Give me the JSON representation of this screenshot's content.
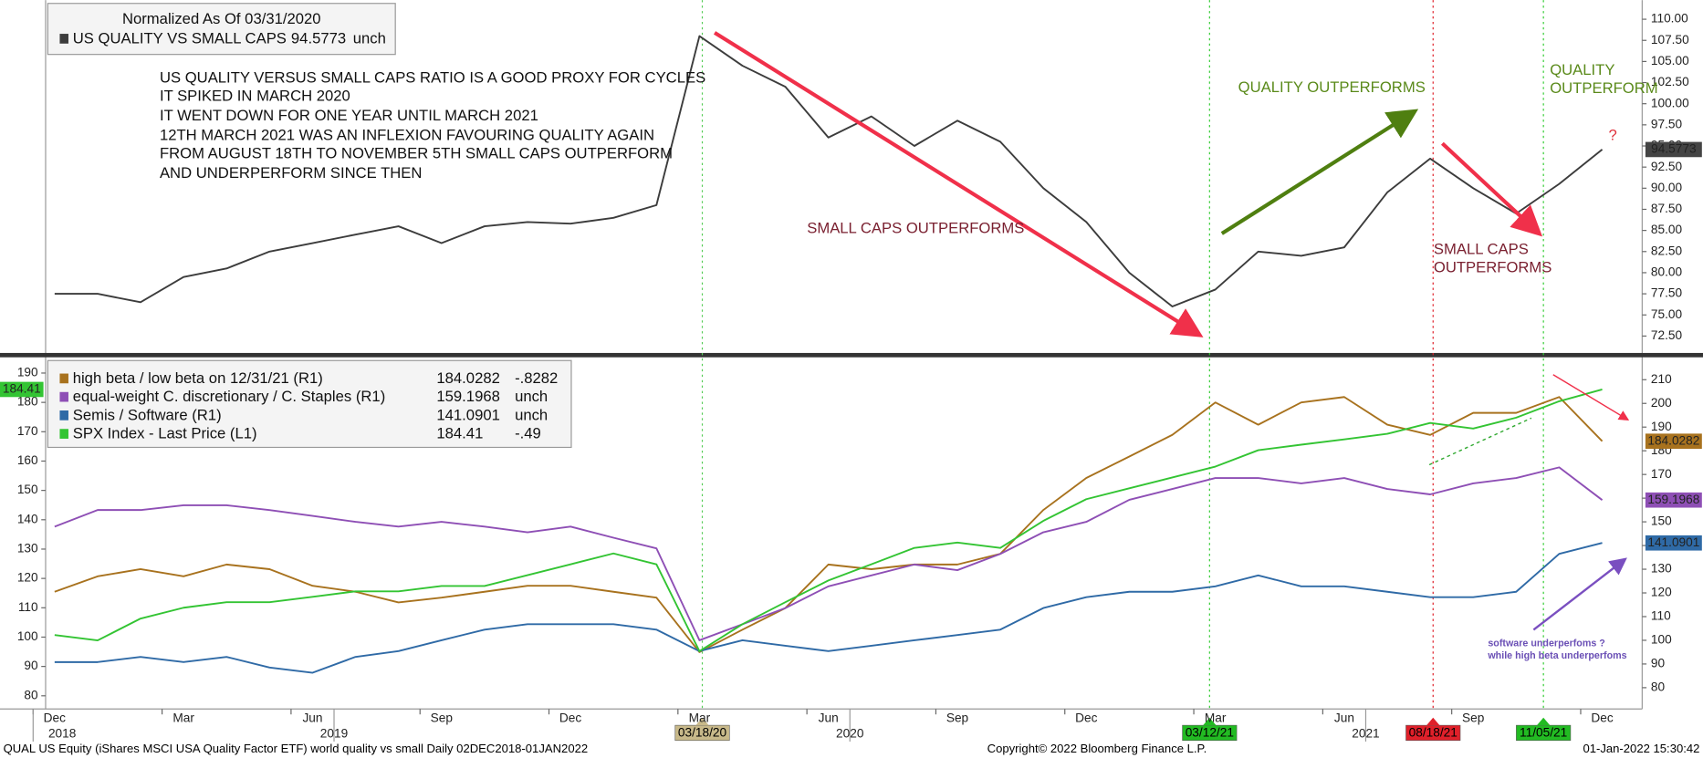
{
  "chart_data": [
    {
      "type": "line",
      "title": "Normalized As Of 03/31/2020",
      "x": [
        "2018-12",
        "2019-01",
        "2019-02",
        "2019-03",
        "2019-04",
        "2019-05",
        "2019-06",
        "2019-07",
        "2019-08",
        "2019-09",
        "2019-10",
        "2019-11",
        "2019-12",
        "2020-01",
        "2020-02",
        "2020-03",
        "2020-04",
        "2020-05",
        "2020-06",
        "2020-07",
        "2020-08",
        "2020-09",
        "2020-10",
        "2020-11",
        "2020-12",
        "2021-01",
        "2021-02",
        "2021-03",
        "2021-04",
        "2021-05",
        "2021-06",
        "2021-07",
        "2021-08",
        "2021-09",
        "2021-10",
        "2021-11",
        "2021-12"
      ],
      "series": [
        {
          "name": "US QUALITY VS SMALL CAPS",
          "color": "#3c3c3c",
          "last_label": "94.5773",
          "change_label": "unch",
          "values": [
            77.5,
            77.5,
            76.5,
            79.5,
            80.5,
            82.5,
            83.5,
            84.5,
            85.5,
            83.5,
            85.5,
            86.0,
            85.8,
            86.5,
            88.0,
            108.0,
            104.5,
            102.0,
            96.0,
            98.5,
            95.0,
            98.0,
            95.5,
            90.0,
            86.0,
            80.0,
            76.0,
            78.0,
            82.5,
            82.0,
            83.0,
            89.5,
            93.5,
            90.0,
            87.0,
            90.5,
            94.5773
          ]
        }
      ],
      "ylim": [
        70.5,
        112
      ],
      "yticks": [
        {
          "value": 72.5,
          "label": "72.50"
        },
        {
          "value": 75,
          "label": "75.00"
        },
        {
          "value": 77.5,
          "label": "77.50"
        },
        {
          "value": 80,
          "label": "80.00"
        },
        {
          "value": 82.5,
          "label": "82.50"
        },
        {
          "value": 85,
          "label": "85.00"
        },
        {
          "value": 87.5,
          "label": "87.50"
        },
        {
          "value": 90,
          "label": "90.00"
        },
        {
          "value": 92.5,
          "label": "92.50"
        },
        {
          "value": 95,
          "label": "95.00"
        },
        {
          "value": 97.5,
          "label": "97.50"
        },
        {
          "value": 100,
          "label": "100.00"
        },
        {
          "value": 102.5,
          "label": "102.50"
        },
        {
          "value": 105,
          "label": "105.00"
        },
        {
          "value": 107.5,
          "label": "107.50"
        },
        {
          "value": 110,
          "label": "110.00"
        }
      ],
      "annotations": [
        {
          "text": "US QUALITY VERSUS SMALL CAPS RATIO IS A GOOD PROXY FOR CYCLES",
          "color": "#111111"
        },
        {
          "text": "IT SPIKED IN MARCH 2020",
          "color": "#111111"
        },
        {
          "text": "IT WENT DOWN FOR ONE YEAR UNTIL MARCH 2021",
          "color": "#111111"
        },
        {
          "text": "12TH MARCH 2021 WAS AN INFLEXION FAVOURING QUALITY AGAIN",
          "color": "#111111"
        },
        {
          "text": "FROM AUGUST 18TH TO NOVEMBER 5TH SMALL CAPS OUTPERFORM",
          "color": "#111111"
        },
        {
          "text": "AND UNDERPERFORM SINCE THEN",
          "color": "#111111"
        },
        {
          "text": "SMALL CAPS OUTPERFORMS",
          "color": "#7a2030"
        },
        {
          "text": "QUALITY OUTPERFORMS",
          "color": "#5a8a1a"
        },
        {
          "text": "QUALITY",
          "color": "#5a8a1a"
        },
        {
          "text": "OUTPERFORM",
          "color": "#5a8a1a"
        },
        {
          "text": "SMALL CAPS",
          "color": "#7a2030"
        },
        {
          "text": "OUTPERFORMS",
          "color": "#7a2030"
        },
        {
          "text": "?",
          "color": "#e0303a"
        }
      ]
    },
    {
      "type": "line",
      "x": [
        "2018-12",
        "2019-01",
        "2019-02",
        "2019-03",
        "2019-04",
        "2019-05",
        "2019-06",
        "2019-07",
        "2019-08",
        "2019-09",
        "2019-10",
        "2019-11",
        "2019-12",
        "2020-01",
        "2020-02",
        "2020-03",
        "2020-04",
        "2020-05",
        "2020-06",
        "2020-07",
        "2020-08",
        "2020-09",
        "2020-10",
        "2020-11",
        "2020-12",
        "2021-01",
        "2021-02",
        "2021-03",
        "2021-04",
        "2021-05",
        "2021-06",
        "2021-07",
        "2021-08",
        "2021-09",
        "2021-10",
        "2021-11",
        "2021-12"
      ],
      "series": [
        {
          "name": "high beta / low beta on 12/31/21 (R1)",
          "color": "#a8721e",
          "axis": "y2",
          "last_label": "184.0282",
          "change_label": "-.8282",
          "values": [
            120.5,
            127,
            130,
            127,
            132,
            130,
            123,
            120.5,
            116,
            118,
            120.5,
            123,
            123,
            120.5,
            118,
            95,
            104.5,
            113.6,
            132,
            130,
            132,
            132,
            136.5,
            155,
            168.5,
            177.6,
            186.7,
            200.4,
            191,
            200.4,
            202.7,
            191,
            186.7,
            196,
            196,
            202.7,
            184.0282
          ]
        },
        {
          "name": "equal-weight C. discretionary / C. Staples (R1)",
          "color": "#8e4fb5",
          "axis": "y2",
          "last_label": "159.1968",
          "change_label": "unch",
          "values": [
            148,
            155,
            155,
            157,
            157,
            155,
            152.5,
            150,
            148,
            150,
            148,
            145.6,
            148,
            143.3,
            138.8,
            100,
            106.8,
            113.6,
            122.8,
            127.4,
            132,
            129.6,
            136.5,
            145.6,
            150,
            159.3,
            163.9,
            168.5,
            168.5,
            166.2,
            168.5,
            163.9,
            161.6,
            166.2,
            168.5,
            173,
            159.1968
          ]
        },
        {
          "name": "Semis / Software (R1)",
          "color": "#2f6aa6",
          "axis": "y2",
          "last_label": "141.0901",
          "change_label": "unch",
          "values": [
            90.8,
            90.8,
            93,
            90.8,
            93,
            88.5,
            86.3,
            93,
            95.4,
            100,
            104.5,
            106.8,
            106.8,
            106.8,
            104.5,
            95.4,
            100,
            97.7,
            95.4,
            97.7,
            100,
            102.2,
            104.5,
            113.6,
            118.2,
            120.5,
            120.5,
            122.8,
            127.4,
            122.8,
            122.8,
            120.5,
            118.2,
            118.2,
            120.5,
            136.5,
            141.0901
          ]
        },
        {
          "name": "SPX Index - Last Price (L1)",
          "color": "#33c433",
          "axis": "y",
          "last_label": "184.41",
          "change_label": "-.49",
          "values": [
            100.7,
            98.9,
            106.3,
            110,
            111.9,
            111.9,
            113.7,
            115.6,
            115.6,
            117.4,
            117.4,
            121.1,
            124.8,
            128.5,
            124.8,
            95.2,
            104.4,
            111.9,
            119.3,
            124.8,
            130.4,
            132.2,
            130.4,
            139.6,
            147,
            150.7,
            154.4,
            158.1,
            163.7,
            165.6,
            167.4,
            169.3,
            173,
            171.1,
            174.8,
            180.4,
            184.41
          ]
        }
      ],
      "ylim": [
        75.5,
        195
      ],
      "yticks": [
        80,
        90,
        100,
        110,
        120,
        130,
        140,
        150,
        160,
        170,
        180,
        190
      ],
      "y2lim": [
        71,
        219
      ],
      "y2ticks": [
        80,
        90,
        100,
        110,
        120,
        130,
        140,
        150,
        160,
        170,
        180,
        190,
        200,
        210
      ],
      "xticks": [
        {
          "value": "2018-12",
          "label": "Dec"
        },
        {
          "value": "2019-03",
          "label": "Mar"
        },
        {
          "value": "2019-06",
          "label": "Jun"
        },
        {
          "value": "2019-09",
          "label": "Sep"
        },
        {
          "value": "2019-12",
          "label": "Dec"
        },
        {
          "value": "2020-03",
          "label": "Mar"
        },
        {
          "value": "2020-06",
          "label": "Jun"
        },
        {
          "value": "2020-09",
          "label": "Sep"
        },
        {
          "value": "2020-12",
          "label": "Dec"
        },
        {
          "value": "2021-03",
          "label": "Mar"
        },
        {
          "value": "2021-06",
          "label": "Jun"
        },
        {
          "value": "2021-09",
          "label": "Sep"
        },
        {
          "value": "2021-12",
          "label": "Dec"
        }
      ],
      "year_ticks": [
        {
          "value": "2018-12",
          "label": "2018"
        },
        {
          "value": "2019-07",
          "label": "2019"
        },
        {
          "value": "2020-07",
          "label": "2020"
        },
        {
          "value": "2021-07",
          "label": "2021"
        }
      ],
      "annotations": [
        {
          "text": "software underperfoms ?",
          "color": "#6a4fb5"
        },
        {
          "text": "while high beta underperfoms",
          "color": "#6a4fb5"
        }
      ]
    }
  ],
  "markers": [
    {
      "label": "03/18/20",
      "color": "#c8b98a",
      "line": "#55cc55"
    },
    {
      "label": "03/12/21",
      "color": "#22bb22",
      "line": "#33cc33"
    },
    {
      "label": "08/18/21",
      "color": "#e0202a",
      "line": "#e0202a"
    },
    {
      "label": "11/05/21",
      "color": "#22bb22",
      "line": "#33cc33"
    }
  ],
  "footer": {
    "left": "QUAL US Equity (iShares MSCI USA Quality Factor ETF) world quality vs small  Daily 02DEC2018-01JAN2022",
    "center": "Copyright© 2022 Bloomberg Finance L.P.",
    "right": "01-Jan-2022 15:30:42"
  }
}
